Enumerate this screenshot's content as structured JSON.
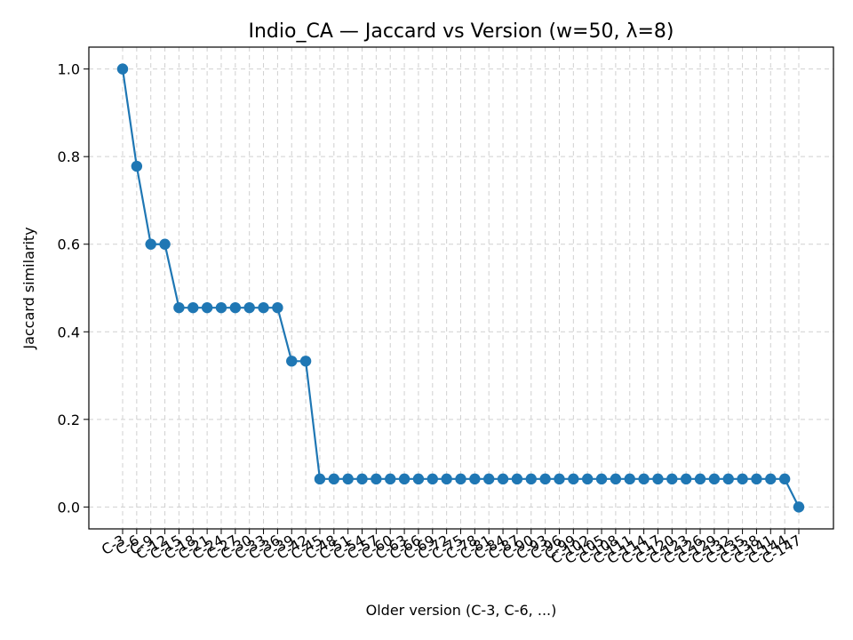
{
  "chart_data": {
    "type": "line",
    "title": "Indio_CA — Jaccard vs Version (w=50, λ=8)",
    "xlabel": "Older version (C-3, C-6, ...)",
    "ylabel": "Jaccard similarity",
    "ylim": [
      -0.05,
      1.05
    ],
    "yticks": [
      0.0,
      0.2,
      0.4,
      0.6,
      0.8,
      1.0
    ],
    "ytick_labels": [
      "0.0",
      "0.2",
      "0.4",
      "0.6",
      "0.8",
      "1.0"
    ],
    "grid": true,
    "color": "#1f77b4",
    "categories": [
      "C-3",
      "C-6",
      "C-9",
      "C-12",
      "C-15",
      "C-18",
      "C-21",
      "C-24",
      "C-27",
      "C-30",
      "C-33",
      "C-36",
      "C-39",
      "C-42",
      "C-45",
      "C-48",
      "C-51",
      "C-54",
      "C-57",
      "C-60",
      "C-63",
      "C-66",
      "C-69",
      "C-72",
      "C-75",
      "C-78",
      "C-81",
      "C-84",
      "C-87",
      "C-90",
      "C-93",
      "C-96",
      "C-99",
      "C-102",
      "C-105",
      "C-108",
      "C-111",
      "C-114",
      "C-117",
      "C-120",
      "C-123",
      "C-126",
      "C-129",
      "C-132",
      "C-135",
      "C-138",
      "C-141",
      "C-144",
      "C-147"
    ],
    "values": [
      1.0,
      0.778,
      0.6,
      0.6,
      0.455,
      0.455,
      0.455,
      0.455,
      0.455,
      0.455,
      0.455,
      0.455,
      0.333,
      0.333,
      0.064,
      0.064,
      0.064,
      0.064,
      0.064,
      0.064,
      0.064,
      0.064,
      0.064,
      0.064,
      0.064,
      0.064,
      0.064,
      0.064,
      0.064,
      0.064,
      0.064,
      0.064,
      0.064,
      0.064,
      0.064,
      0.064,
      0.064,
      0.064,
      0.064,
      0.064,
      0.064,
      0.064,
      0.064,
      0.064,
      0.064,
      0.064,
      0.064,
      0.064,
      0.0
    ]
  }
}
